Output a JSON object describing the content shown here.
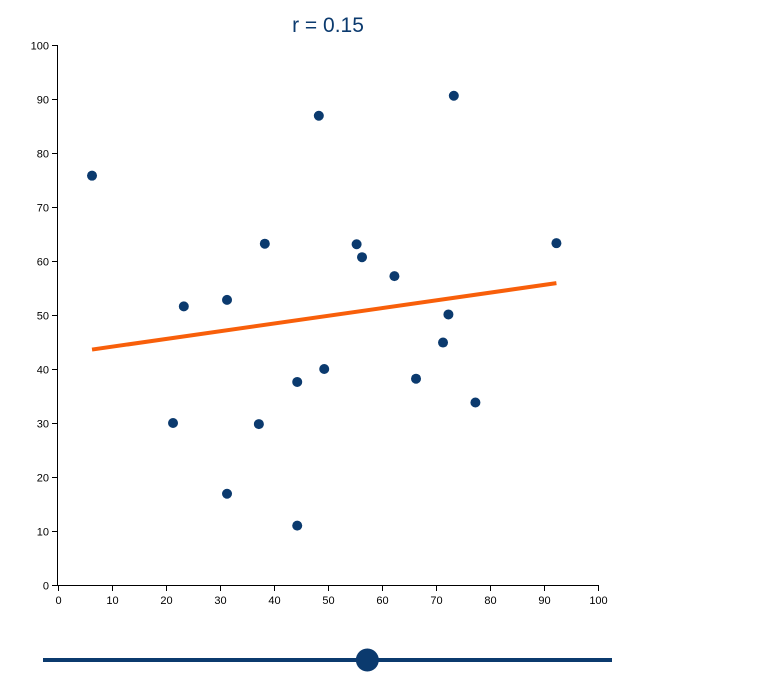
{
  "chart_data": {
    "type": "scatter",
    "title": "r = 0.15",
    "xlim": [
      0,
      100
    ],
    "ylim": [
      0,
      100
    ],
    "x_ticks": [
      0,
      10,
      20,
      30,
      40,
      50,
      60,
      70,
      80,
      90,
      100
    ],
    "y_ticks": [
      0,
      10,
      20,
      30,
      40,
      50,
      60,
      70,
      80,
      90,
      100
    ],
    "grid": false,
    "points": [
      {
        "x": 6.3,
        "y": 75.8
      },
      {
        "x": 21.3,
        "y": 30.0
      },
      {
        "x": 23.3,
        "y": 51.6
      },
      {
        "x": 31.3,
        "y": 52.8
      },
      {
        "x": 31.3,
        "y": 16.9
      },
      {
        "x": 37.2,
        "y": 29.8
      },
      {
        "x": 38.3,
        "y": 63.2
      },
      {
        "x": 44.3,
        "y": 37.6
      },
      {
        "x": 44.3,
        "y": 11.0
      },
      {
        "x": 48.3,
        "y": 86.9
      },
      {
        "x": 49.3,
        "y": 40.0
      },
      {
        "x": 55.3,
        "y": 63.1
      },
      {
        "x": 56.3,
        "y": 60.7
      },
      {
        "x": 62.3,
        "y": 57.2
      },
      {
        "x": 66.3,
        "y": 38.2
      },
      {
        "x": 71.3,
        "y": 44.9
      },
      {
        "x": 72.3,
        "y": 50.1
      },
      {
        "x": 73.3,
        "y": 90.6
      },
      {
        "x": 77.3,
        "y": 33.8
      },
      {
        "x": 92.3,
        "y": 63.3
      }
    ],
    "regression_line": {
      "x1": 6.3,
      "y1": 43.6,
      "x2": 92.3,
      "y2": 55.9
    },
    "colors": {
      "points": "#0b3a6e",
      "regression": "#f85f0a",
      "title": "#0b3a6e"
    }
  },
  "slider": {
    "value": 0.57,
    "color": "#0b3a6e"
  }
}
